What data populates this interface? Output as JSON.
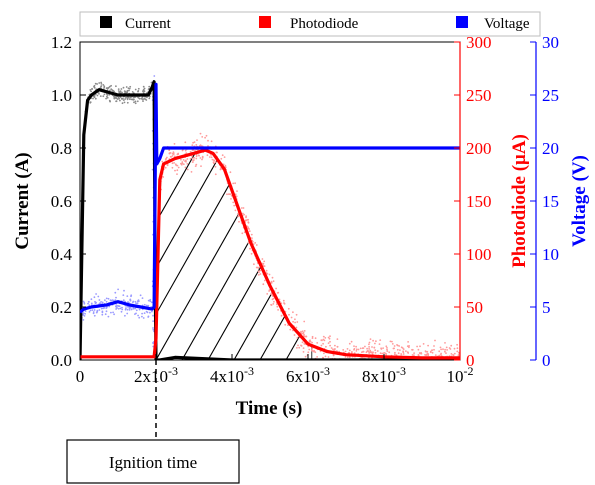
{
  "colors": {
    "current": "#000000",
    "photodiode": "#ff0000",
    "voltage": "#0000ff",
    "photodiode_scatter": "#ff9a9a",
    "current_scatter": "#8a8a8a",
    "voltage_scatter": "#9a9aff"
  },
  "chart_data": {
    "type": "line",
    "xlabel": "Time (s)",
    "x_ticks": [
      "0",
      "2x10-3",
      "4x10-3",
      "6x10-3",
      "8x10-3",
      "10-2"
    ],
    "xlim": [
      0,
      0.01
    ],
    "y_axes": {
      "left": {
        "label": "Current (A)",
        "range": [
          0,
          1.2
        ],
        "ticks": [
          "0.0",
          "0.2",
          "0.4",
          "0.6",
          "0.8",
          "1.0",
          "1.2"
        ]
      },
      "right_inner": {
        "label": "Photodiode (μA)",
        "range": [
          0,
          300
        ],
        "ticks": [
          "0",
          "50",
          "100",
          "150",
          "200",
          "250",
          "300"
        ]
      },
      "right_outer": {
        "label": "Voltage (V)",
        "range": [
          0,
          30
        ],
        "ticks": [
          "0",
          "5",
          "10",
          "15",
          "20",
          "25",
          "30"
        ]
      }
    },
    "legend": {
      "placement": "top",
      "entries": [
        "Current",
        "Photodiode",
        "Voltage"
      ]
    },
    "series": [
      {
        "name": "Current",
        "axis": "left",
        "x": [
          0.0,
          0.0001,
          0.0002,
          0.0003,
          0.0005,
          0.001,
          0.0015,
          0.0018,
          0.0019,
          0.00195,
          0.00198,
          0.002,
          0.0021,
          0.0025,
          0.004,
          0.006,
          0.008,
          0.01
        ],
        "values": [
          0.0,
          0.85,
          0.98,
          1.0,
          1.02,
          1.0,
          1.0,
          1.0,
          1.03,
          1.05,
          0.3,
          0.0,
          0.0,
          0.01,
          0.0,
          0.0,
          0.0,
          0.0
        ]
      },
      {
        "name": "Photodiode",
        "axis": "right_inner",
        "x": [
          0.0,
          0.0019,
          0.00195,
          0.002,
          0.0021,
          0.0022,
          0.0025,
          0.003,
          0.0033,
          0.0035,
          0.0038,
          0.004,
          0.0045,
          0.005,
          0.0055,
          0.006,
          0.0065,
          0.007,
          0.008,
          0.009,
          0.01
        ],
        "values": [
          3,
          3,
          3,
          20,
          170,
          185,
          190,
          195,
          198,
          195,
          180,
          160,
          110,
          70,
          35,
          15,
          8,
          5,
          3,
          2,
          2
        ]
      },
      {
        "name": "Voltage",
        "axis": "right_outer",
        "x": [
          0.0,
          0.0001,
          0.0003,
          0.0007,
          0.001,
          0.0013,
          0.0016,
          0.0019,
          0.00195,
          0.002,
          0.00202,
          0.0021,
          0.0022,
          0.003,
          0.004,
          0.006,
          0.008,
          0.01
        ],
        "values": [
          4.5,
          4.8,
          5.0,
          5.2,
          5.5,
          5.2,
          5.0,
          4.8,
          5.0,
          26.0,
          18.5,
          19.0,
          20.0,
          20.0,
          20.0,
          20.0,
          20.0,
          20.0
        ]
      }
    ],
    "annotations": [
      {
        "text": "Ignition time",
        "x": 0.002
      }
    ],
    "hatched_region": {
      "x_start": 0.002,
      "x_end": 0.0061,
      "under_series": "Photodiode"
    },
    "grid": false
  }
}
